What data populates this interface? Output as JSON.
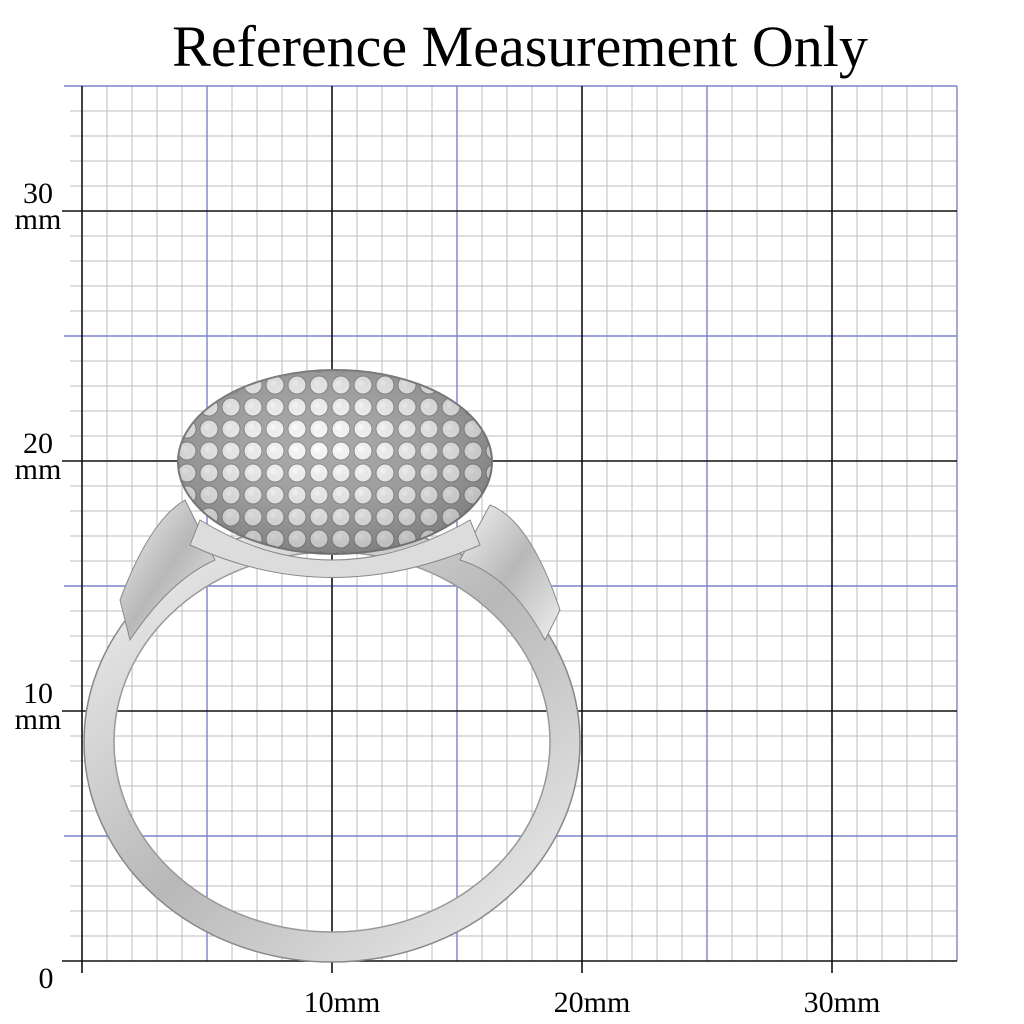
{
  "header": {
    "title": "Reference Measurement Only"
  },
  "y_labels": [
    {
      "number": "30",
      "unit": "mm"
    },
    {
      "number": "20",
      "unit": "mm"
    },
    {
      "number": "10",
      "unit": "mm"
    }
  ],
  "origin_label": "0",
  "x_labels": [
    "10mm",
    "20mm",
    "30mm"
  ]
}
